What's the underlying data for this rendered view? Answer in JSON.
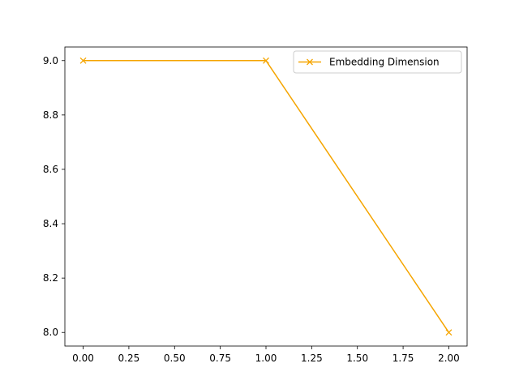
{
  "chart_data": {
    "type": "line",
    "title": "",
    "xlabel": "",
    "ylabel": "",
    "xlim": [
      -0.1,
      2.1
    ],
    "ylim": [
      7.95,
      9.05
    ],
    "x_ticks": [
      0.0,
      0.25,
      0.5,
      0.75,
      1.0,
      1.25,
      1.5,
      1.75,
      2.0
    ],
    "x_tick_labels": [
      "0.00",
      "0.25",
      "0.50",
      "0.75",
      "1.00",
      "1.25",
      "1.50",
      "1.75",
      "2.00"
    ],
    "y_ticks": [
      8.0,
      8.2,
      8.4,
      8.6,
      8.8,
      9.0
    ],
    "y_tick_labels": [
      "8.0",
      "8.2",
      "8.4",
      "8.6",
      "8.8",
      "9.0"
    ],
    "grid": false,
    "legend_position": "top-right",
    "series": [
      {
        "name": "Embedding Dimension",
        "color": "#f5a500",
        "marker": "x",
        "x": [
          0,
          1,
          2
        ],
        "values": [
          9,
          9,
          8
        ]
      }
    ]
  }
}
